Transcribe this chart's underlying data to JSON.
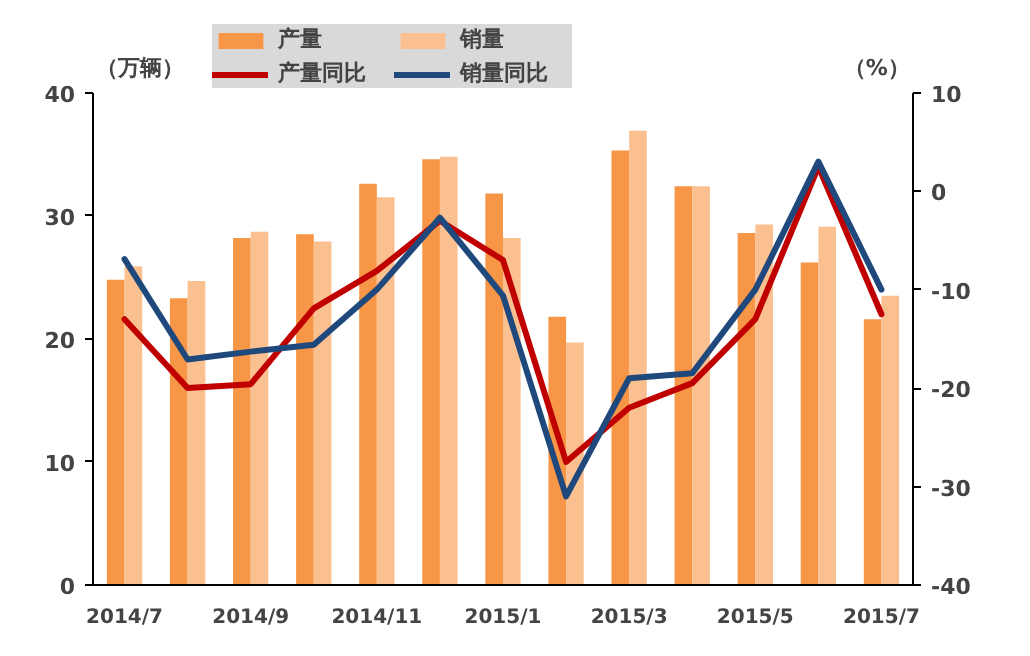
{
  "chart_data": {
    "type": "bar",
    "ylabel": "（万辆）",
    "y2label": "（%）",
    "categories": [
      "2014/7",
      null,
      "2014/9",
      null,
      "2014/11",
      null,
      "2015/1",
      null,
      "2015/3",
      null,
      "2015/5",
      null,
      "2015/7"
    ],
    "ylim": [
      0,
      40
    ],
    "yticks": [
      0,
      10,
      20,
      30,
      40
    ],
    "y2lim": [
      -40,
      10
    ],
    "y2ticks": [
      -40,
      -30,
      -20,
      -10,
      0,
      10
    ],
    "legend": "top",
    "grid": false,
    "series": [
      {
        "name": "产量",
        "color": "#f79646",
        "values": [
          24.8,
          23.3,
          28.2,
          28.5,
          32.6,
          34.6,
          31.8,
          21.8,
          35.3,
          32.4,
          28.6,
          26.2,
          21.6
        ]
      },
      {
        "name": "销量",
        "color": "#fac090",
        "values": [
          25.9,
          24.7,
          28.7,
          27.9,
          31.5,
          34.8,
          28.2,
          19.7,
          36.9,
          32.4,
          29.3,
          29.1,
          23.5
        ]
      },
      {
        "name": "产量同比",
        "type": "line",
        "axis": "y2",
        "color": "#c00000",
        "values": [
          -13,
          -20,
          -19.6,
          -11.9,
          -8.1,
          -3,
          -7,
          -27.5,
          -22,
          -19.5,
          -13,
          2.5,
          -12.5
        ]
      },
      {
        "name": "销量同比",
        "type": "line",
        "axis": "y2",
        "color": "#1f497d",
        "values": [
          -6.9,
          -17.1,
          -16.3,
          -15.6,
          -10,
          -2.7,
          -10.6,
          -31,
          -19,
          -18.5,
          -10,
          3,
          -10
        ]
      }
    ]
  }
}
